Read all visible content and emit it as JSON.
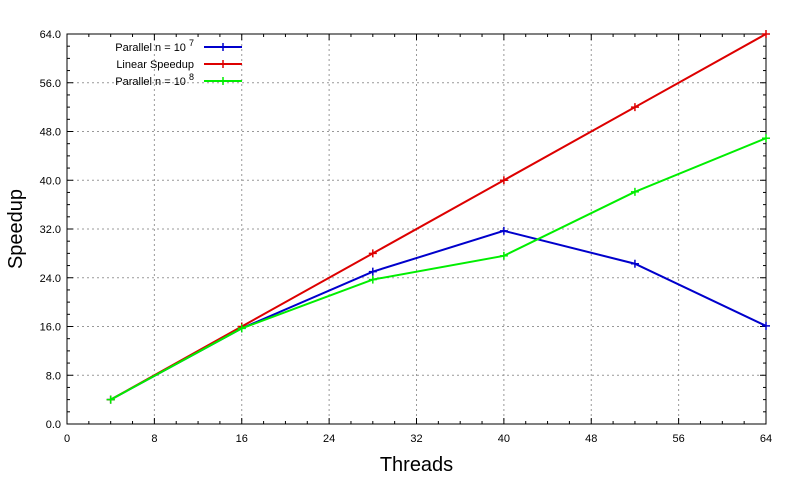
{
  "chart_data": {
    "type": "line",
    "title": "",
    "xlabel": "Threads",
    "ylabel": "Speedup",
    "xlim": [
      0,
      64
    ],
    "ylim": [
      0,
      64
    ],
    "xticks": [
      0,
      8,
      16,
      24,
      32,
      40,
      48,
      56,
      64
    ],
    "yticks": [
      0,
      8,
      16,
      24,
      32,
      40,
      48,
      56,
      64
    ],
    "xtick_labels": [
      "0",
      "8",
      "16",
      "24",
      "32",
      "40",
      "48",
      "56",
      "64"
    ],
    "ytick_labels": [
      "0.0",
      "8.0",
      "16.0",
      "24.0",
      "32.0",
      "40.0",
      "48.0",
      "56.0",
      "64.0"
    ],
    "grid": true,
    "legend_position": "top-left",
    "series": [
      {
        "legend_prefix": "Parallel n = 10",
        "legend_exponent": "7",
        "color": "#0000cc",
        "x": [
          4,
          16,
          28,
          40,
          52,
          64
        ],
        "y": [
          4.0,
          15.7,
          25.0,
          31.7,
          26.3,
          16.1
        ]
      },
      {
        "legend_prefix": "Linear Speedup",
        "legend_exponent": "",
        "color": "#dd0000",
        "x": [
          4,
          16,
          28,
          40,
          52,
          64
        ],
        "y": [
          4.0,
          16.0,
          28.0,
          40.0,
          52.0,
          64.0
        ]
      },
      {
        "legend_prefix": "Parallel n = 10",
        "legend_exponent": "8",
        "color": "#00ee00",
        "x": [
          4,
          16,
          28,
          40,
          52,
          64
        ],
        "y": [
          4.0,
          15.7,
          23.7,
          27.6,
          38.1,
          46.9
        ]
      }
    ]
  }
}
